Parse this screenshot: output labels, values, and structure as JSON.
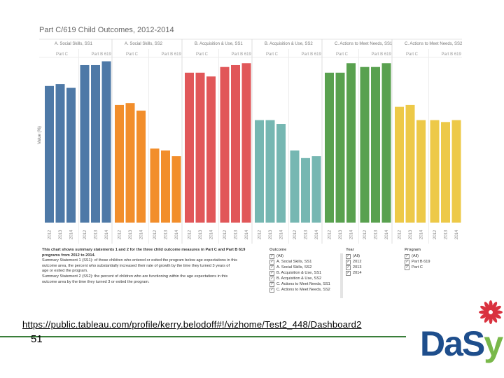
{
  "title": "Part C/619 Child Outcomes, 2012-2014",
  "url": "https://public.tableau.com/profile/kerry.belodoff#!/vizhome/Test2_448/Dashboard2",
  "slide_number": "51",
  "logo": {
    "text": "DaSy",
    "colors": {
      "d": "#1e4e8c",
      "s": "#1e4e8c",
      "y": "#79b84a",
      "flower": "#d9323f"
    }
  },
  "description": [
    "This chart shows summary statements 1 and 2 for the three child outcome measures in Part C and Part B 619",
    "programs from 2012 to 2014.",
    "Summary Statement 1 (SS1): of those children who entered or exited the program below age expectations in this",
    "outcome area, the percent who substantially increased their rate of growth by the time they turned 3 years of",
    "age or exited the program.",
    "Summary Statement 2 (SS2): the percent of children who are functioning within the age expectations in this",
    "outcome area by the time they turned 3 or exited the program."
  ],
  "filters": {
    "outcome": {
      "title": "Outcome",
      "items": [
        "(All)",
        "A. Social Skills, SS1",
        "A. Social Skills, SS2",
        "B. Acquisition & Use, SS1",
        "B. Acquisition & Use, SS2",
        "C. Actions to Meet Needs, SS1",
        "C. Actions to Meet Needs, SS2"
      ]
    },
    "year": {
      "title": "Year",
      "items": [
        "(All)",
        "2012",
        "2013",
        "2014"
      ]
    },
    "program": {
      "title": "Program",
      "items": [
        "(All)",
        "Part B 619",
        "Part C"
      ]
    }
  },
  "chart_data": {
    "type": "bar",
    "title": "Part C/619 Child Outcomes, 2012-2014",
    "ylabel": "Value (%)",
    "ylim": [
      0,
      90
    ],
    "yticks": [
      0,
      10,
      20,
      30,
      40,
      50,
      60,
      70,
      80
    ],
    "grid": false,
    "groups": [
      {
        "name": "A. Social Skills, SS1",
        "color": "#4e79a7",
        "programs": [
          {
            "name": "Part C",
            "years": [
              "2012",
              "2013",
              "2014"
            ],
            "values": [
              72,
              73,
              71
            ]
          },
          {
            "name": "Part B 619",
            "years": [
              "2012",
              "2013",
              "2014"
            ],
            "values": [
              83,
              83,
              85
            ]
          }
        ]
      },
      {
        "name": "A. Social Skills, SS2",
        "color": "#f28e2b",
        "programs": [
          {
            "name": "Part C",
            "years": [
              "2012",
              "2013",
              "2014"
            ],
            "values": [
              62,
              63,
              59
            ]
          },
          {
            "name": "Part B 619",
            "years": [
              "2012",
              "2013",
              "2014"
            ],
            "values": [
              39,
              38,
              35
            ]
          }
        ]
      },
      {
        "name": "B. Acquisition & Use, SS1",
        "color": "#e15759",
        "programs": [
          {
            "name": "Part C",
            "years": [
              "2012",
              "2013",
              "2014"
            ],
            "values": [
              79,
              79,
              77
            ]
          },
          {
            "name": "Part B 619",
            "years": [
              "2012",
              "2013",
              "2014"
            ],
            "values": [
              82,
              83,
              84
            ]
          }
        ]
      },
      {
        "name": "B. Acquisition & Use, SS2",
        "color": "#76b7b2",
        "programs": [
          {
            "name": "Part C",
            "years": [
              "2012",
              "2013",
              "2014"
            ],
            "values": [
              54,
              54,
              52
            ]
          },
          {
            "name": "Part B 619",
            "years": [
              "2012",
              "2013",
              "2014"
            ],
            "values": [
              38,
              34,
              35
            ]
          }
        ]
      },
      {
        "name": "C. Actions to Meet Needs, SS1",
        "color": "#59a14f",
        "programs": [
          {
            "name": "Part C",
            "years": [
              "2012",
              "2013",
              "2014"
            ],
            "values": [
              79,
              79,
              84
            ]
          },
          {
            "name": "Part B 619",
            "years": [
              "2012",
              "2013",
              "2014"
            ],
            "values": [
              82,
              82,
              84
            ]
          }
        ]
      },
      {
        "name": "C. Actions to Meet Needs, SS2",
        "color": "#edc948",
        "programs": [
          {
            "name": "Part C",
            "years": [
              "2012",
              "2013",
              "2014"
            ],
            "values": [
              61,
              62,
              54
            ]
          },
          {
            "name": "Part B 619",
            "years": [
              "2012",
              "2013",
              "2014"
            ],
            "values": [
              54,
              53,
              54
            ]
          }
        ]
      }
    ]
  }
}
